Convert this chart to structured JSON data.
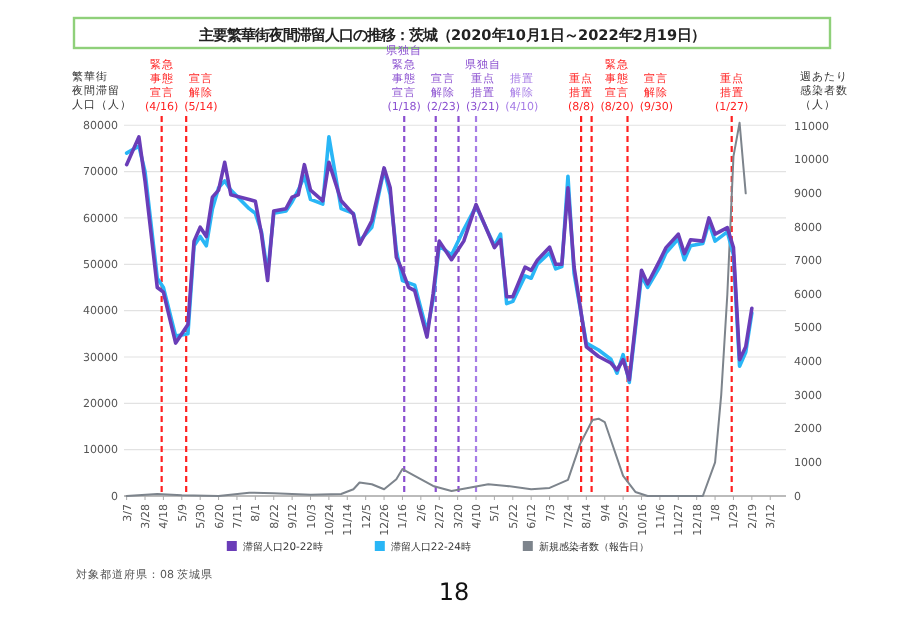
{
  "chart_data": {
    "type": "line",
    "title": "主要繁華街夜間滞留人口の推移：茨城（2020年10月1日～2022年2月19日）",
    "ylabel": "繁華街夜間滞留人口（人）",
    "y2label": "週あたり感染者数（人）",
    "xlim": [
      "2020-03-04",
      "2022-03-30"
    ],
    "xticks": [
      {
        "value": "2020-03-07",
        "label": "3/7"
      },
      {
        "value": "2020-03-28",
        "label": "3/28"
      },
      {
        "value": "2020-04-18",
        "label": "4/18"
      },
      {
        "value": "2020-05-09",
        "label": "5/9"
      },
      {
        "value": "2020-05-30",
        "label": "5/30"
      },
      {
        "value": "2020-06-20",
        "label": "6/20"
      },
      {
        "value": "2020-07-11",
        "label": "7/11"
      },
      {
        "value": "2020-08-01",
        "label": "8/1"
      },
      {
        "value": "2020-08-22",
        "label": "8/22"
      },
      {
        "value": "2020-09-12",
        "label": "9/12"
      },
      {
        "value": "2020-10-03",
        "label": "10/3"
      },
      {
        "value": "2020-10-24",
        "label": "10/24"
      },
      {
        "value": "2020-11-14",
        "label": "11/14"
      },
      {
        "value": "2020-12-05",
        "label": "12/5"
      },
      {
        "value": "2020-12-26",
        "label": "12/26"
      },
      {
        "value": "2021-01-16",
        "label": "1/16"
      },
      {
        "value": "2021-02-06",
        "label": "2/6"
      },
      {
        "value": "2021-02-27",
        "label": "2/27"
      },
      {
        "value": "2021-03-20",
        "label": "3/20"
      },
      {
        "value": "2021-04-10",
        "label": "4/10"
      },
      {
        "value": "2021-05-01",
        "label": "5/1"
      },
      {
        "value": "2021-05-22",
        "label": "5/22"
      },
      {
        "value": "2021-06-12",
        "label": "6/12"
      },
      {
        "value": "2021-07-03",
        "label": "7/3"
      },
      {
        "value": "2021-07-24",
        "label": "7/24"
      },
      {
        "value": "2021-08-14",
        "label": "8/14"
      },
      {
        "value": "2021-09-04",
        "label": "9/4"
      },
      {
        "value": "2021-09-25",
        "label": "9/25"
      },
      {
        "value": "2021-10-16",
        "label": "10/16"
      },
      {
        "value": "2021-11-06",
        "label": "11/6"
      },
      {
        "value": "2021-11-27",
        "label": "11/27"
      },
      {
        "value": "2021-12-18",
        "label": "12/18"
      },
      {
        "value": "2022-01-08",
        "label": "1/8"
      },
      {
        "value": "2022-01-29",
        "label": "1/29"
      },
      {
        "value": "2022-02-19",
        "label": "2/19"
      },
      {
        "value": "2022-03-12",
        "label": "3/12"
      }
    ],
    "ylim": [
      0,
      82000
    ],
    "yticks": [
      0,
      10000,
      20000,
      30000,
      40000,
      50000,
      60000,
      70000,
      80000
    ],
    "y2lim": [
      0,
      11300
    ],
    "y2ticks": [
      0,
      1000,
      2000,
      3000,
      4000,
      5000,
      6000,
      7000,
      8000,
      9000,
      10000,
      11000
    ],
    "grid": "y",
    "legend": "bottom",
    "series": [
      {
        "name": "滞留人口20-22時",
        "color": "#6a3db8",
        "x": [
          "2020-03-07",
          "2020-03-21",
          "2020-03-28",
          "2020-04-11",
          "2020-04-18",
          "2020-05-02",
          "2020-05-16",
          "2020-05-23",
          "2020-05-30",
          "2020-06-06",
          "2020-06-13",
          "2020-06-20",
          "2020-06-27",
          "2020-07-04",
          "2020-07-25",
          "2020-08-01",
          "2020-08-08",
          "2020-08-15",
          "2020-08-22",
          "2020-09-05",
          "2020-09-12",
          "2020-09-19",
          "2020-09-26",
          "2020-10-03",
          "2020-10-17",
          "2020-10-24",
          "2020-11-07",
          "2020-11-21",
          "2020-11-28",
          "2020-12-12",
          "2020-12-26",
          "2021-01-02",
          "2021-01-09",
          "2021-01-16",
          "2021-01-23",
          "2021-01-30",
          "2021-02-13",
          "2021-02-20",
          "2021-02-27",
          "2021-03-13",
          "2021-03-27",
          "2021-04-10",
          "2021-05-01",
          "2021-05-08",
          "2021-05-15",
          "2021-05-22",
          "2021-06-05",
          "2021-06-12",
          "2021-06-19",
          "2021-07-03",
          "2021-07-10",
          "2021-07-17",
          "2021-07-24",
          "2021-07-31",
          "2021-08-14",
          "2021-08-28",
          "2021-09-11",
          "2021-09-18",
          "2021-09-25",
          "2021-10-02",
          "2021-10-16",
          "2021-10-23",
          "2021-11-06",
          "2021-11-13",
          "2021-11-27",
          "2021-12-04",
          "2021-12-11",
          "2021-12-25",
          "2022-01-01",
          "2022-01-08",
          "2022-01-22",
          "2022-01-29",
          "2022-02-05",
          "2022-02-12",
          "2022-02-19"
        ],
        "values": [
          71500,
          77500,
          68000,
          45000,
          44000,
          33000,
          37000,
          55000,
          58000,
          56000,
          64500,
          66000,
          72000,
          65000,
          64000,
          63600,
          56500,
          46500,
          61500,
          62000,
          64500,
          65000,
          71500,
          66000,
          63700,
          72000,
          63700,
          60800,
          54300,
          59400,
          70800,
          66500,
          51500,
          48600,
          45000,
          44300,
          34300,
          43600,
          55000,
          51000,
          55000,
          62900,
          53600,
          55300,
          43000,
          43000,
          49400,
          48700,
          50900,
          53700,
          50000,
          50000,
          66500,
          49400,
          32200,
          30100,
          28700,
          27200,
          29400,
          25100,
          48700,
          45800,
          50900,
          53600,
          56500,
          52300,
          55300,
          55000,
          60000,
          56500,
          57900,
          53600,
          29400,
          32200,
          40500
        ]
      },
      {
        "name": "滞留人口22-24時",
        "color": "#29b6f6",
        "x": [
          "2020-03-07",
          "2020-03-21",
          "2020-03-28",
          "2020-04-11",
          "2020-04-18",
          "2020-05-02",
          "2020-05-16",
          "2020-05-23",
          "2020-05-30",
          "2020-06-06",
          "2020-06-13",
          "2020-06-20",
          "2020-06-27",
          "2020-07-04",
          "2020-07-25",
          "2020-08-01",
          "2020-08-08",
          "2020-08-15",
          "2020-08-22",
          "2020-09-05",
          "2020-09-12",
          "2020-09-19",
          "2020-09-26",
          "2020-10-03",
          "2020-10-17",
          "2020-10-24",
          "2020-11-07",
          "2020-11-21",
          "2020-11-28",
          "2020-12-12",
          "2020-12-26",
          "2021-01-02",
          "2021-01-09",
          "2021-01-16",
          "2021-01-23",
          "2021-01-30",
          "2021-02-13",
          "2021-02-20",
          "2021-02-27",
          "2021-03-13",
          "2021-03-27",
          "2021-04-10",
          "2021-05-01",
          "2021-05-08",
          "2021-05-15",
          "2021-05-22",
          "2021-06-05",
          "2021-06-12",
          "2021-06-19",
          "2021-07-03",
          "2021-07-10",
          "2021-07-17",
          "2021-07-24",
          "2021-07-31",
          "2021-08-14",
          "2021-08-28",
          "2021-09-11",
          "2021-09-18",
          "2021-09-25",
          "2021-10-02",
          "2021-10-16",
          "2021-10-23",
          "2021-11-06",
          "2021-11-13",
          "2021-11-27",
          "2021-12-04",
          "2021-12-11",
          "2021-12-25",
          "2022-01-01",
          "2022-01-08",
          "2022-01-22",
          "2022-01-29",
          "2022-02-05",
          "2022-02-12",
          "2022-02-19"
        ],
        "values": [
          74000,
          75500,
          70000,
          47000,
          45000,
          34500,
          35000,
          54000,
          56000,
          54000,
          62000,
          66500,
          68000,
          66000,
          62000,
          61000,
          57000,
          48000,
          61000,
          61500,
          63500,
          66000,
          69000,
          64000,
          63000,
          77500,
          62000,
          61000,
          55000,
          58000,
          70500,
          65000,
          53000,
          46500,
          46000,
          45500,
          35500,
          42500,
          54000,
          52000,
          57500,
          62500,
          54000,
          56500,
          41500,
          42000,
          47500,
          47000,
          50000,
          52500,
          49000,
          49500,
          69000,
          48000,
          33000,
          31500,
          29500,
          26500,
          30500,
          24500,
          47500,
          45000,
          49500,
          52500,
          55500,
          51000,
          54000,
          54500,
          59000,
          55000,
          57000,
          52000,
          28000,
          31000,
          39500
        ]
      },
      {
        "name": "新規感染者数（報告日）",
        "color": "#7d848c",
        "axis": "y2",
        "x": [
          "2020-03-07",
          "2020-04-11",
          "2020-05-09",
          "2020-06-20",
          "2020-07-25",
          "2020-08-22",
          "2020-10-03",
          "2020-11-07",
          "2020-11-21",
          "2020-11-28",
          "2020-12-12",
          "2020-12-26",
          "2021-01-09",
          "2021-01-16",
          "2021-01-30",
          "2021-02-20",
          "2021-03-13",
          "2021-04-24",
          "2021-05-15",
          "2021-06-12",
          "2021-07-03",
          "2021-07-24",
          "2021-08-07",
          "2021-08-21",
          "2021-08-28",
          "2021-09-04",
          "2021-09-25",
          "2021-10-09",
          "2021-10-23",
          "2021-12-25",
          "2022-01-08",
          "2022-01-15",
          "2022-01-22",
          "2022-01-29",
          "2022-02-05",
          "2022-02-12"
        ],
        "values": [
          0,
          60,
          20,
          0,
          100,
          80,
          40,
          60,
          200,
          400,
          350,
          200,
          500,
          800,
          600,
          300,
          150,
          350,
          300,
          200,
          240,
          480,
          1550,
          2260,
          2300,
          2200,
          600,
          120,
          0,
          0,
          1000,
          3000,
          6000,
          10100,
          11100,
          9000
        ]
      }
    ],
    "ref_lines": [
      {
        "axis": "x",
        "value": "2020-04-16",
        "label": "緊急事態宣言(4/16)",
        "color": "#ff2020",
        "line_style": "dashed"
      },
      {
        "axis": "x",
        "value": "2020-05-14",
        "label": "宣言解除(5/14)",
        "color": "#ff2020",
        "line_style": "dashed"
      },
      {
        "axis": "x",
        "value": "2021-01-18",
        "label": "県独自緊急事態宣言(1/18)",
        "color": "#8a4fd0",
        "line_style": "dashed"
      },
      {
        "axis": "x",
        "value": "2021-02-23",
        "label": "宣言解除(2/23)",
        "color": "#8a4fd0",
        "line_style": "dashed"
      },
      {
        "axis": "x",
        "value": "2021-03-21",
        "label": "県独自重点措置(3/21)",
        "color": "#8a4fd0",
        "line_style": "dashed"
      },
      {
        "axis": "x",
        "value": "2021-04-10",
        "label": "措置解除(4/10)",
        "color": "#a67ce6",
        "line_style": "dashed"
      },
      {
        "axis": "x",
        "value": "2021-08-08",
        "label": "重点措置(8/8)",
        "color": "#ff2020",
        "line_style": "dashed"
      },
      {
        "axis": "x",
        "value": "2021-08-20",
        "label": "緊急事態宣言(8/20)",
        "color": "#ff2020",
        "line_style": "dashed"
      },
      {
        "axis": "x",
        "value": "2021-09-30",
        "label": "宣言解除(9/30)",
        "color": "#ff2020",
        "line_style": "dashed"
      },
      {
        "axis": "x",
        "value": "2022-01-27",
        "label": "重点措置(1/27)",
        "color": "#ff2020",
        "line_style": "dashed"
      }
    ],
    "annotations": [
      "対象都道府県：08 茨城県",
      "18"
    ]
  }
}
